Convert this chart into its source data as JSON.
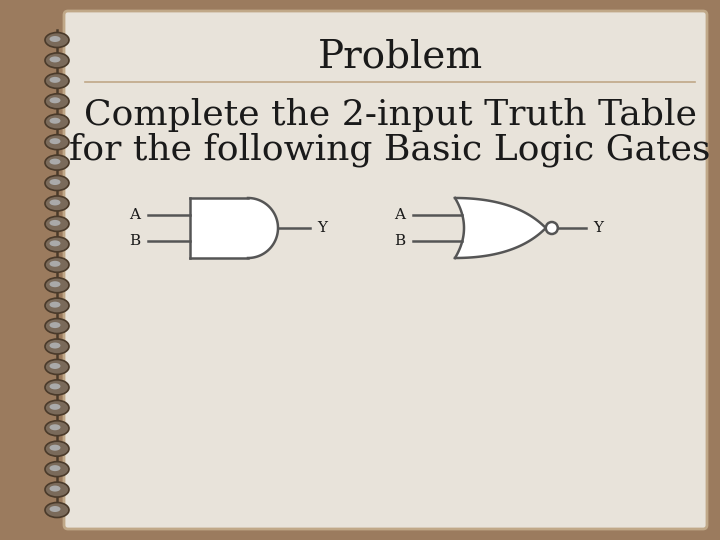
{
  "title": "Problem",
  "subtitle_line1": "Complete the 2-input Truth Table",
  "subtitle_line2": "for the following Basic Logic Gates",
  "bg_outer": "#9b7b5e",
  "bg_page": "#e8e3da",
  "text_color": "#1a1a1a",
  "title_fontsize": 28,
  "body_fontsize": 26,
  "gate_line_color": "#555555",
  "gate_fill": "#ffffff",
  "spiral_dark": "#4a3a2a",
  "spiral_mid": "#7a6a5a",
  "spiral_light": "#aaaaaa"
}
